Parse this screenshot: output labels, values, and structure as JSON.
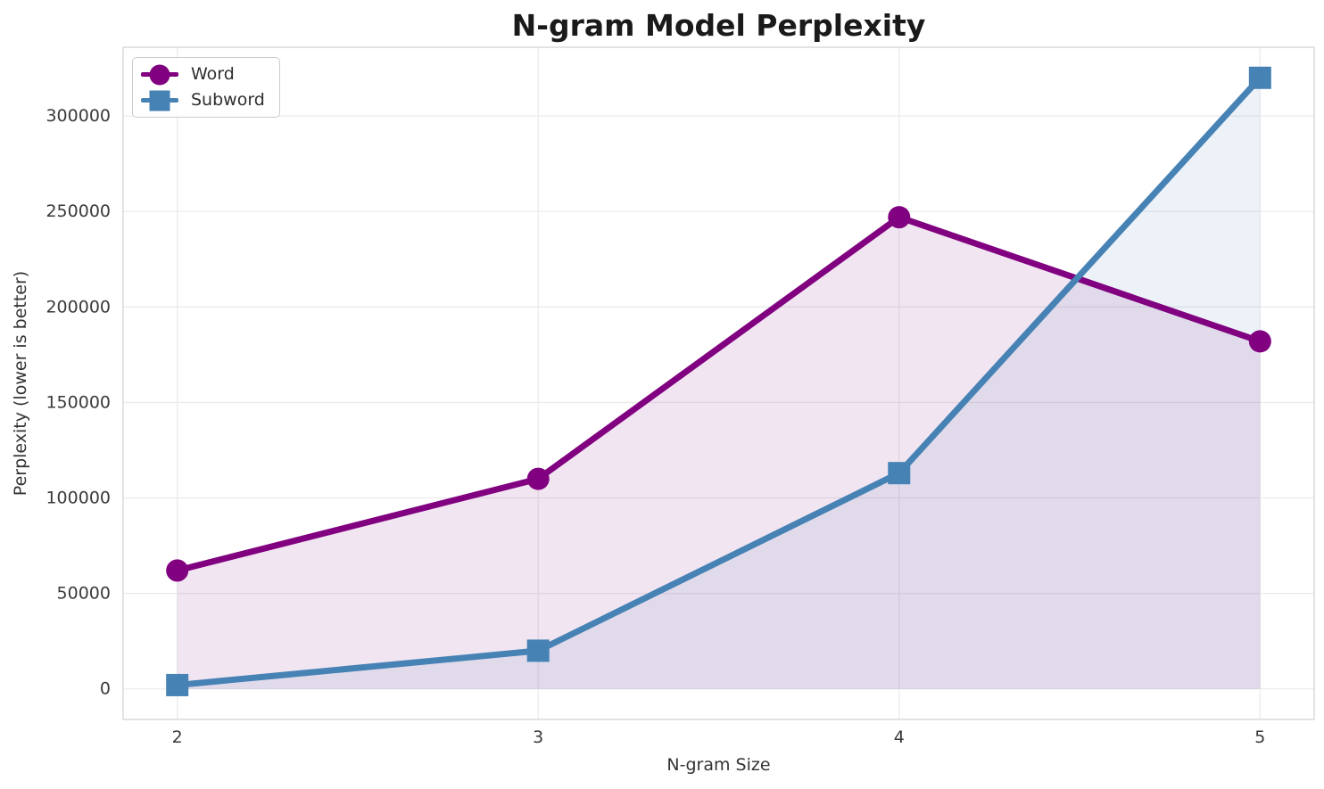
{
  "chart": {
    "title": "N-gram Model Perplexity",
    "xlabel": "N-gram Size",
    "ylabel": "Perplexity (lower is better)"
  },
  "chart_data": {
    "type": "line",
    "title": "N-gram Model Perplexity",
    "xlabel": "N-gram Size",
    "ylabel": "Perplexity (lower is better)",
    "x": [
      2,
      3,
      4,
      5
    ],
    "series": [
      {
        "name": "Word",
        "values": [
          62000,
          110000,
          247000,
          182000
        ],
        "color": "#800080",
        "marker": "circle",
        "fill_to_zero": true,
        "fill_opacity": 0.1
      },
      {
        "name": "Subword",
        "values": [
          2000,
          20000,
          113000,
          320000
        ],
        "color": "#4682B4",
        "marker": "square",
        "fill_to_zero": true,
        "fill_opacity": 0.1
      }
    ],
    "xticks": [
      2,
      3,
      4,
      5
    ],
    "yticks": [
      0,
      50000,
      100000,
      150000,
      200000,
      250000,
      300000
    ],
    "xlim": [
      1.85,
      5.15
    ],
    "ylim": [
      -16000,
      336000
    ],
    "grid": true,
    "legend_position": "upper left"
  },
  "style": {
    "background_color": "#ffffff",
    "grid_color": "#ebebeb",
    "spine_color": "#d4d4d4",
    "tick_color": "#3a3a3a",
    "title_color": "#1a1a1a"
  }
}
